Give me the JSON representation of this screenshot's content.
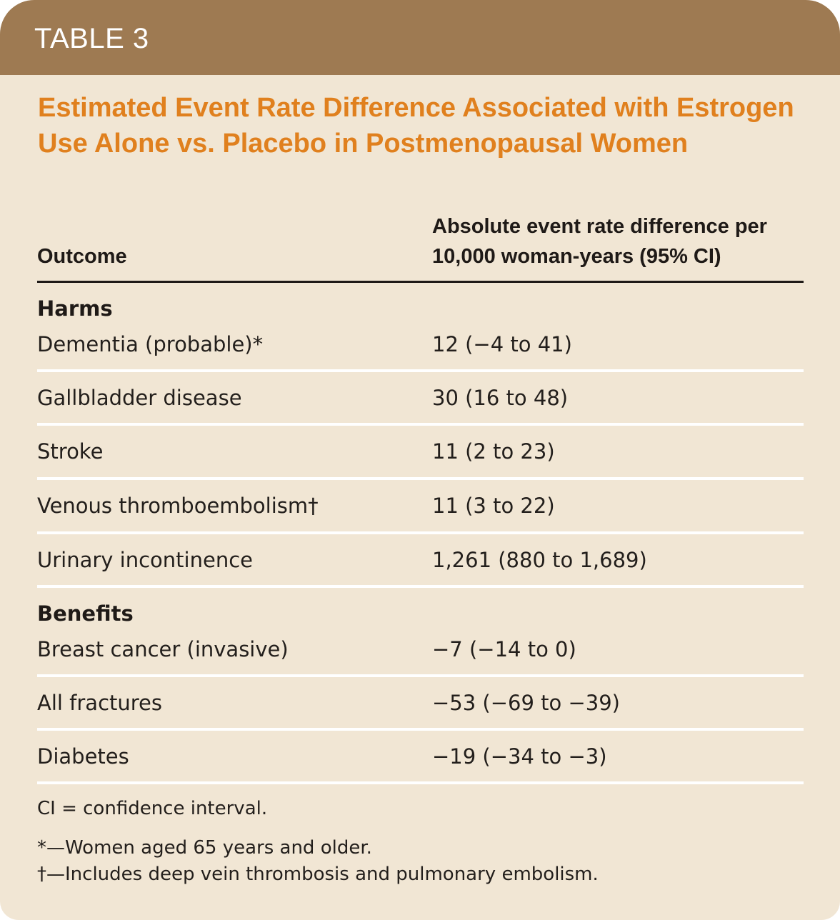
{
  "header": {
    "label": "TABLE 3"
  },
  "title": "Estimated Event Rate Difference Associated with Estrogen Use Alone vs. Placebo in Postmenopausal Women",
  "columns": {
    "outcome": "Outcome",
    "difference_line1": "Absolute event rate difference per",
    "difference_line2": "10,000 woman-years (95% CI)"
  },
  "sections": [
    {
      "label": "Harms",
      "rows": [
        {
          "outcome": "Dementia (probable)*",
          "value": "12 (−4 to 41)"
        },
        {
          "outcome": "Gallbladder disease",
          "value": "30 (16 to 48)"
        },
        {
          "outcome": "Stroke",
          "value": "11 (2 to 23)"
        },
        {
          "outcome": "Venous thromboembolism†",
          "value": "11 (3 to 22)"
        },
        {
          "outcome": "Urinary incontinence",
          "value": "1,261 (880 to 1,689)"
        }
      ]
    },
    {
      "label": "Benefits",
      "rows": [
        {
          "outcome": "Breast cancer (invasive)",
          "value": "−7 (−14 to 0)"
        },
        {
          "outcome": "All fractures",
          "value": "−53 (−69 to −39)"
        },
        {
          "outcome": "Diabetes",
          "value": "−19 (−34 to −3)"
        }
      ]
    }
  ],
  "footnotes": [
    "CI = confidence interval.",
    "*—Women aged 65 years and older.",
    "†—Includes deep vein thrombosis and pulmonary embolism."
  ],
  "colors": {
    "header": "#9e7a52",
    "background": "#f1e6d4",
    "title": "#e0801e"
  }
}
